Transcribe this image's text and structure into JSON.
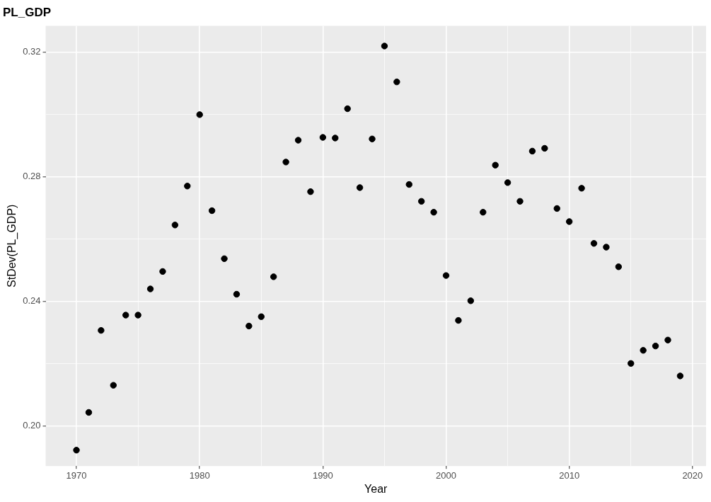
{
  "chart_data": {
    "type": "scatter",
    "title": "PL_GDP",
    "xlabel": "Year",
    "ylabel": "StDev(PL_GDP)",
    "x": [
      1970,
      1971,
      1972,
      1973,
      1974,
      1975,
      1976,
      1977,
      1978,
      1979,
      1980,
      1981,
      1982,
      1983,
      1984,
      1985,
      1986,
      1987,
      1988,
      1989,
      1990,
      1991,
      1992,
      1993,
      1994,
      1995,
      1996,
      1997,
      1998,
      1999,
      2000,
      2001,
      2002,
      2003,
      2004,
      2005,
      2006,
      2007,
      2008,
      2009,
      2010,
      2011,
      2012,
      2013,
      2014,
      2015,
      2016,
      2017,
      2018,
      2019
    ],
    "values": [
      0.1923,
      0.2044,
      0.2307,
      0.2131,
      0.2356,
      0.2356,
      0.244,
      0.2496,
      0.2645,
      0.277,
      0.2999,
      0.2691,
      0.2537,
      0.2423,
      0.2321,
      0.2351,
      0.2479,
      0.2847,
      0.2917,
      0.2752,
      0.2926,
      0.2924,
      0.3018,
      0.2765,
      0.2921,
      0.3219,
      0.3104,
      0.2775,
      0.2721,
      0.2686,
      0.2483,
      0.2339,
      0.2402,
      0.2686,
      0.2837,
      0.2781,
      0.2721,
      0.2882,
      0.2891,
      0.2698,
      0.2656,
      0.2763,
      0.2586,
      0.2574,
      0.2511,
      0.2201,
      0.2243,
      0.2257,
      0.2276,
      0.2161
    ],
    "color": "#000000",
    "marker": "circle",
    "grid": true,
    "legend": false,
    "xlim": [
      1967.5,
      2021.1
    ],
    "ylim": [
      0.1872,
      0.3284
    ],
    "xticks": [
      1970,
      {
        "value": 1975,
        "label": null
      },
      1980,
      {
        "value": 1985,
        "label": null
      },
      1990,
      {
        "value": 1995,
        "label": null
      },
      2000,
      {
        "value": 2005,
        "label": null
      },
      2010,
      {
        "value": 2015,
        "label": null
      },
      2020
    ],
    "yticks": [
      {
        "value": 0.2,
        "label": "0.20"
      },
      {
        "value": 0.22,
        "label": null
      },
      {
        "value": 0.24,
        "label": "0.24"
      },
      {
        "value": 0.26,
        "label": null
      },
      {
        "value": 0.28,
        "label": "0.28"
      },
      {
        "value": 0.3,
        "label": null
      },
      {
        "value": 0.32,
        "label": "0.32"
      }
    ]
  }
}
